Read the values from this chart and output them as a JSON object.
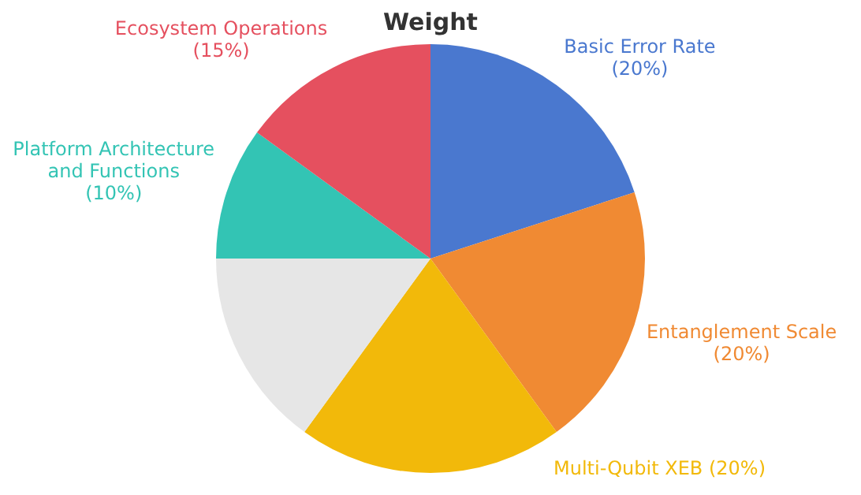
{
  "chart_data": {
    "type": "pie",
    "title": "Weight",
    "categories": [
      "Basic Error Rate",
      "Entanglement Scale",
      "Multi-Qubit XEB",
      null,
      "Platform Architecture and Functions",
      "Ecosystem Operations"
    ],
    "values": [
      20,
      20,
      20,
      15,
      10,
      15
    ],
    "colors": [
      "#4a78cf",
      "#f08a33",
      "#f2b90a",
      "#e6e6e6",
      "#33c4b4",
      "#e5505f"
    ],
    "value_labels": [
      "(20%)",
      "(20%)",
      "(20%)",
      null,
      "(10%)",
      "(15%)"
    ],
    "legend": false
  }
}
